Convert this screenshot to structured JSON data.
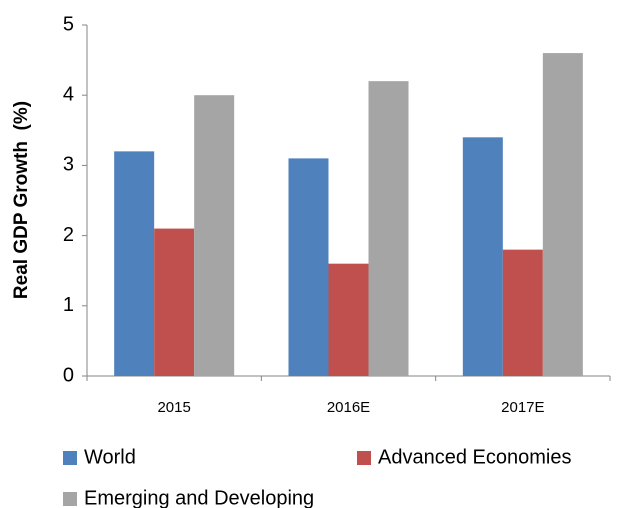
{
  "chart_data": {
    "type": "bar",
    "y_label": "Real GDP Growth  (%)",
    "categories": [
      "2015",
      "2016E",
      "2017E"
    ],
    "series": [
      {
        "name": "World",
        "color": "#4f81bd",
        "values": [
          3.2,
          3.1,
          3.4
        ]
      },
      {
        "name": "Advanced Economies",
        "color": "#c0504d",
        "values": [
          2.1,
          1.6,
          1.8
        ]
      },
      {
        "name": "Emerging and Developing",
        "color": "#a5a5a5",
        "values": [
          4.0,
          4.2,
          4.6
        ]
      }
    ],
    "ylim": [
      0,
      5
    ],
    "yticks": [
      0,
      1,
      2,
      3,
      4,
      5
    ],
    "grid": false,
    "legend": "bottom"
  }
}
